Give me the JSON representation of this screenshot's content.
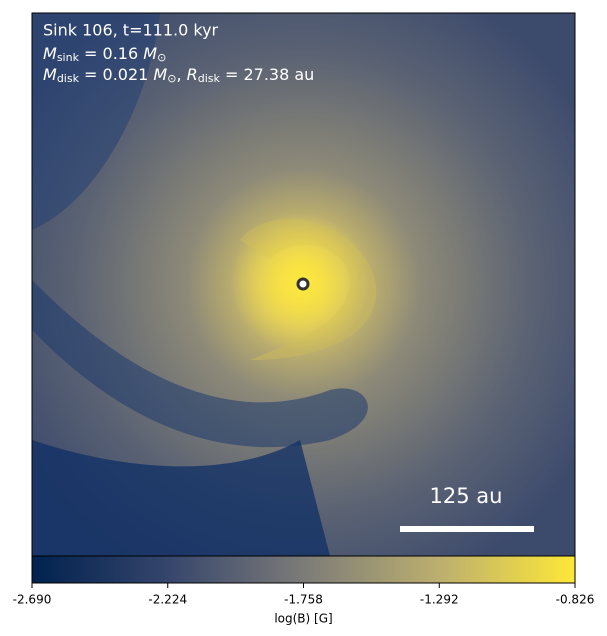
{
  "chart_data": {
    "type": "image",
    "annotations": {
      "title": "Sink 106, t=111.0 kyr",
      "sink_mass": [
        "M",
        "sink",
        " = 0.16 ",
        "M",
        "⊙"
      ],
      "disk": [
        "M",
        "disk",
        " = 0.021 ",
        "M",
        "⊙",
        ", ",
        "R",
        "disk",
        " = 27.38 au"
      ]
    },
    "scale_bar": "125 au",
    "colorbar": {
      "label": "log(B) [G]",
      "colormap": [
        "#00224e",
        "#35456c",
        "#7c7b78",
        "#bcaf6f",
        "#fee838"
      ],
      "clim": [
        -2.69,
        -0.826
      ],
      "ticks": [
        {
          "value": -2.69,
          "label": "-2.690"
        },
        {
          "value": -2.224,
          "label": "-2.224"
        },
        {
          "value": -1.758,
          "label": "-1.758"
        },
        {
          "value": -1.292,
          "label": "-1.292"
        },
        {
          "value": -0.826,
          "label": "-0.826"
        }
      ]
    }
  }
}
